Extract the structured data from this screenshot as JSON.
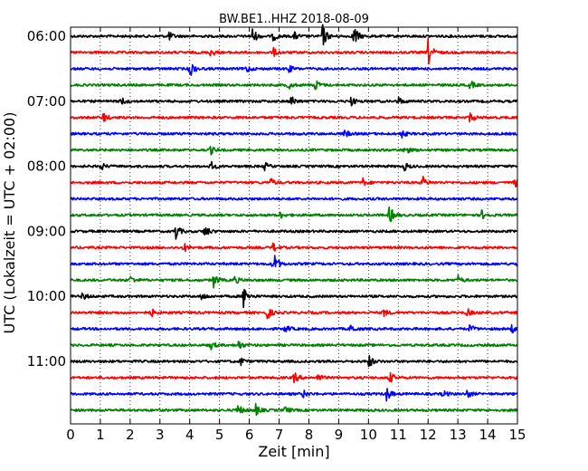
{
  "chart_data": {
    "type": "line",
    "title": "BW.BE1..HHZ 2018-08-09",
    "xlabel": "Zeit  [min]",
    "ylabel": "UTC (Lokalzeit = UTC + 02:00)",
    "xlim": [
      0,
      15
    ],
    "x_ticks": [
      "0",
      "1",
      "2",
      "3",
      "4",
      "5",
      "6",
      "7",
      "8",
      "9",
      "10",
      "11",
      "12",
      "13",
      "14",
      "15"
    ],
    "y_tick_labels": [
      "06:00",
      "07:00",
      "08:00",
      "09:00",
      "10:00",
      "11:00"
    ],
    "grid": true,
    "row_interval_minutes": 15,
    "trace_colors": [
      "#000000",
      "#ff0000",
      "#0000ff",
      "#008000"
    ],
    "rows": [
      {
        "start": "06:00",
        "color": "#000000",
        "events": [
          {
            "t": 3.3,
            "amp": 0.3
          },
          {
            "t": 6.1,
            "amp": 0.6
          },
          {
            "t": 6.8,
            "amp": 0.35
          },
          {
            "t": 7.5,
            "amp": 0.3
          },
          {
            "t": 8.45,
            "amp": 0.9
          },
          {
            "t": 9.5,
            "amp": 0.9
          }
        ]
      },
      {
        "start": "06:15",
        "color": "#ff0000",
        "events": [
          {
            "t": 4.7,
            "amp": 0.3
          },
          {
            "t": 6.8,
            "amp": 0.3
          },
          {
            "t": 12.0,
            "amp": 1.0
          }
        ]
      },
      {
        "start": "06:30",
        "color": "#0000ff",
        "events": [
          {
            "t": 4.0,
            "amp": 0.65
          },
          {
            "t": 5.9,
            "amp": 0.3
          },
          {
            "t": 7.3,
            "amp": 0.3
          }
        ]
      },
      {
        "start": "06:45",
        "color": "#008000",
        "events": [
          {
            "t": 7.3,
            "amp": 0.3
          },
          {
            "t": 8.2,
            "amp": 0.45
          },
          {
            "t": 13.4,
            "amp": 0.35
          }
        ]
      },
      {
        "start": "07:00",
        "color": "#000000",
        "events": [
          {
            "t": 1.7,
            "amp": 0.3
          },
          {
            "t": 7.4,
            "amp": 0.4
          },
          {
            "t": 9.4,
            "amp": 0.35
          },
          {
            "t": 11.0,
            "amp": 0.3
          }
        ]
      },
      {
        "start": "07:15",
        "color": "#ff0000",
        "events": [
          {
            "t": 1.1,
            "amp": 0.35
          },
          {
            "t": 13.4,
            "amp": 0.35
          }
        ]
      },
      {
        "start": "07:30",
        "color": "#0000ff",
        "events": [
          {
            "t": 9.2,
            "amp": 0.3
          },
          {
            "t": 11.1,
            "amp": 0.3
          }
        ]
      },
      {
        "start": "07:45",
        "color": "#008000",
        "events": [
          {
            "t": 4.7,
            "amp": 0.3
          },
          {
            "t": 11.2,
            "amp": 0.4
          }
        ]
      },
      {
        "start": "08:00",
        "color": "#000000",
        "events": [
          {
            "t": 1.0,
            "amp": 0.3
          },
          {
            "t": 4.7,
            "amp": 0.35
          },
          {
            "t": 6.5,
            "amp": 0.3
          },
          {
            "t": 11.2,
            "amp": 0.3
          }
        ]
      },
      {
        "start": "08:15",
        "color": "#ff0000",
        "events": [
          {
            "t": 6.7,
            "amp": 0.3
          },
          {
            "t": 9.8,
            "amp": 0.3
          },
          {
            "t": 11.8,
            "amp": 0.45
          },
          {
            "t": 14.9,
            "amp": 0.35
          }
        ]
      },
      {
        "start": "08:30",
        "color": "#0000ff",
        "events": []
      },
      {
        "start": "08:45",
        "color": "#008000",
        "events": [
          {
            "t": 7.0,
            "amp": 0.3
          },
          {
            "t": 10.7,
            "amp": 0.7
          },
          {
            "t": 13.8,
            "amp": 0.3
          }
        ]
      },
      {
        "start": "09:00",
        "color": "#000000",
        "events": [
          {
            "t": 3.5,
            "amp": 0.7
          },
          {
            "t": 4.5,
            "amp": 0.5
          }
        ]
      },
      {
        "start": "09:15",
        "color": "#ff0000",
        "events": [
          {
            "t": 3.8,
            "amp": 0.3
          },
          {
            "t": 6.8,
            "amp": 0.35
          }
        ]
      },
      {
        "start": "09:30",
        "color": "#0000ff",
        "events": [
          {
            "t": 6.8,
            "amp": 1.0
          },
          {
            "t": 15.0,
            "amp": 0.4
          }
        ]
      },
      {
        "start": "09:45",
        "color": "#008000",
        "events": [
          {
            "t": 2.0,
            "amp": 0.3
          },
          {
            "t": 4.8,
            "amp": 0.5
          },
          {
            "t": 5.5,
            "amp": 0.3
          },
          {
            "t": 13.0,
            "amp": 0.3
          }
        ]
      },
      {
        "start": "10:00",
        "color": "#000000",
        "events": [
          {
            "t": 0.4,
            "amp": 0.3
          },
          {
            "t": 4.4,
            "amp": 0.3
          },
          {
            "t": 5.8,
            "amp": 0.8
          }
        ]
      },
      {
        "start": "10:15",
        "color": "#ff0000",
        "events": [
          {
            "t": 2.7,
            "amp": 0.3
          },
          {
            "t": 6.6,
            "amp": 0.5
          },
          {
            "t": 10.5,
            "amp": 0.3
          },
          {
            "t": 13.3,
            "amp": 0.3
          }
        ]
      },
      {
        "start": "10:30",
        "color": "#0000ff",
        "events": [
          {
            "t": 7.2,
            "amp": 0.3
          },
          {
            "t": 9.4,
            "amp": 0.3
          },
          {
            "t": 13.4,
            "amp": 0.3
          },
          {
            "t": 14.8,
            "amp": 0.3
          }
        ]
      },
      {
        "start": "10:45",
        "color": "#008000",
        "events": [
          {
            "t": 4.7,
            "amp": 0.3
          },
          {
            "t": 5.6,
            "amp": 0.45
          }
        ]
      },
      {
        "start": "11:00",
        "color": "#000000",
        "events": [
          {
            "t": 5.7,
            "amp": 0.3
          },
          {
            "t": 10.0,
            "amp": 0.5
          }
        ]
      },
      {
        "start": "11:15",
        "color": "#ff0000",
        "events": [
          {
            "t": 7.5,
            "amp": 0.4
          },
          {
            "t": 8.3,
            "amp": 0.3
          },
          {
            "t": 10.7,
            "amp": 0.45
          }
        ]
      },
      {
        "start": "11:30",
        "color": "#0000ff",
        "events": [
          {
            "t": 7.8,
            "amp": 0.3
          },
          {
            "t": 10.6,
            "amp": 0.55
          },
          {
            "t": 12.5,
            "amp": 0.3
          },
          {
            "t": 13.3,
            "amp": 0.3
          }
        ]
      },
      {
        "start": "11:45",
        "color": "#008000",
        "events": [
          {
            "t": 5.6,
            "amp": 0.5
          },
          {
            "t": 6.2,
            "amp": 0.45
          },
          {
            "t": 7.2,
            "amp": 0.3
          }
        ]
      }
    ]
  }
}
